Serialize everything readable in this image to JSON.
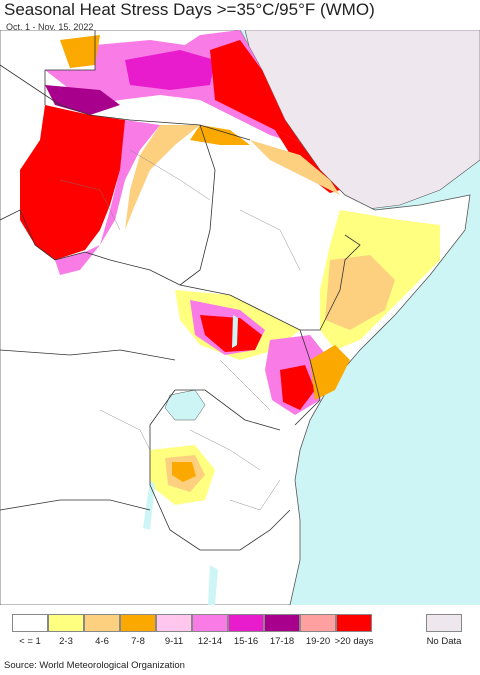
{
  "title": "Seasonal Heat Stress Days >=35°C/95°F (WMO)",
  "subtitle": "Oct. 1 - Nov. 15, 2022",
  "source": "Source: World Meteorological Organization",
  "colors": {
    "ocean": "#cdf5f5",
    "land": "#ffffff",
    "nodata": "#eee8ee",
    "border": "#333333"
  },
  "legend": [
    {
      "label": "< = 1",
      "color": "#ffffff"
    },
    {
      "label": "2-3",
      "color": "#ffff80"
    },
    {
      "label": "4-6",
      "color": "#fdd080"
    },
    {
      "label": "7-8",
      "color": "#fba800"
    },
    {
      "label": "9-11",
      "color": "#ffc6ee"
    },
    {
      "label": "12-14",
      "color": "#f97be6"
    },
    {
      "label": "15-16",
      "color": "#e81ccd"
    },
    {
      "label": "17-18",
      "color": "#a8008c"
    },
    {
      "label": "19-20",
      "color": "#ffa0a0"
    },
    {
      "label": ">20 days",
      "color": "#ff0000"
    }
  ],
  "nodata_label": "No Data"
}
